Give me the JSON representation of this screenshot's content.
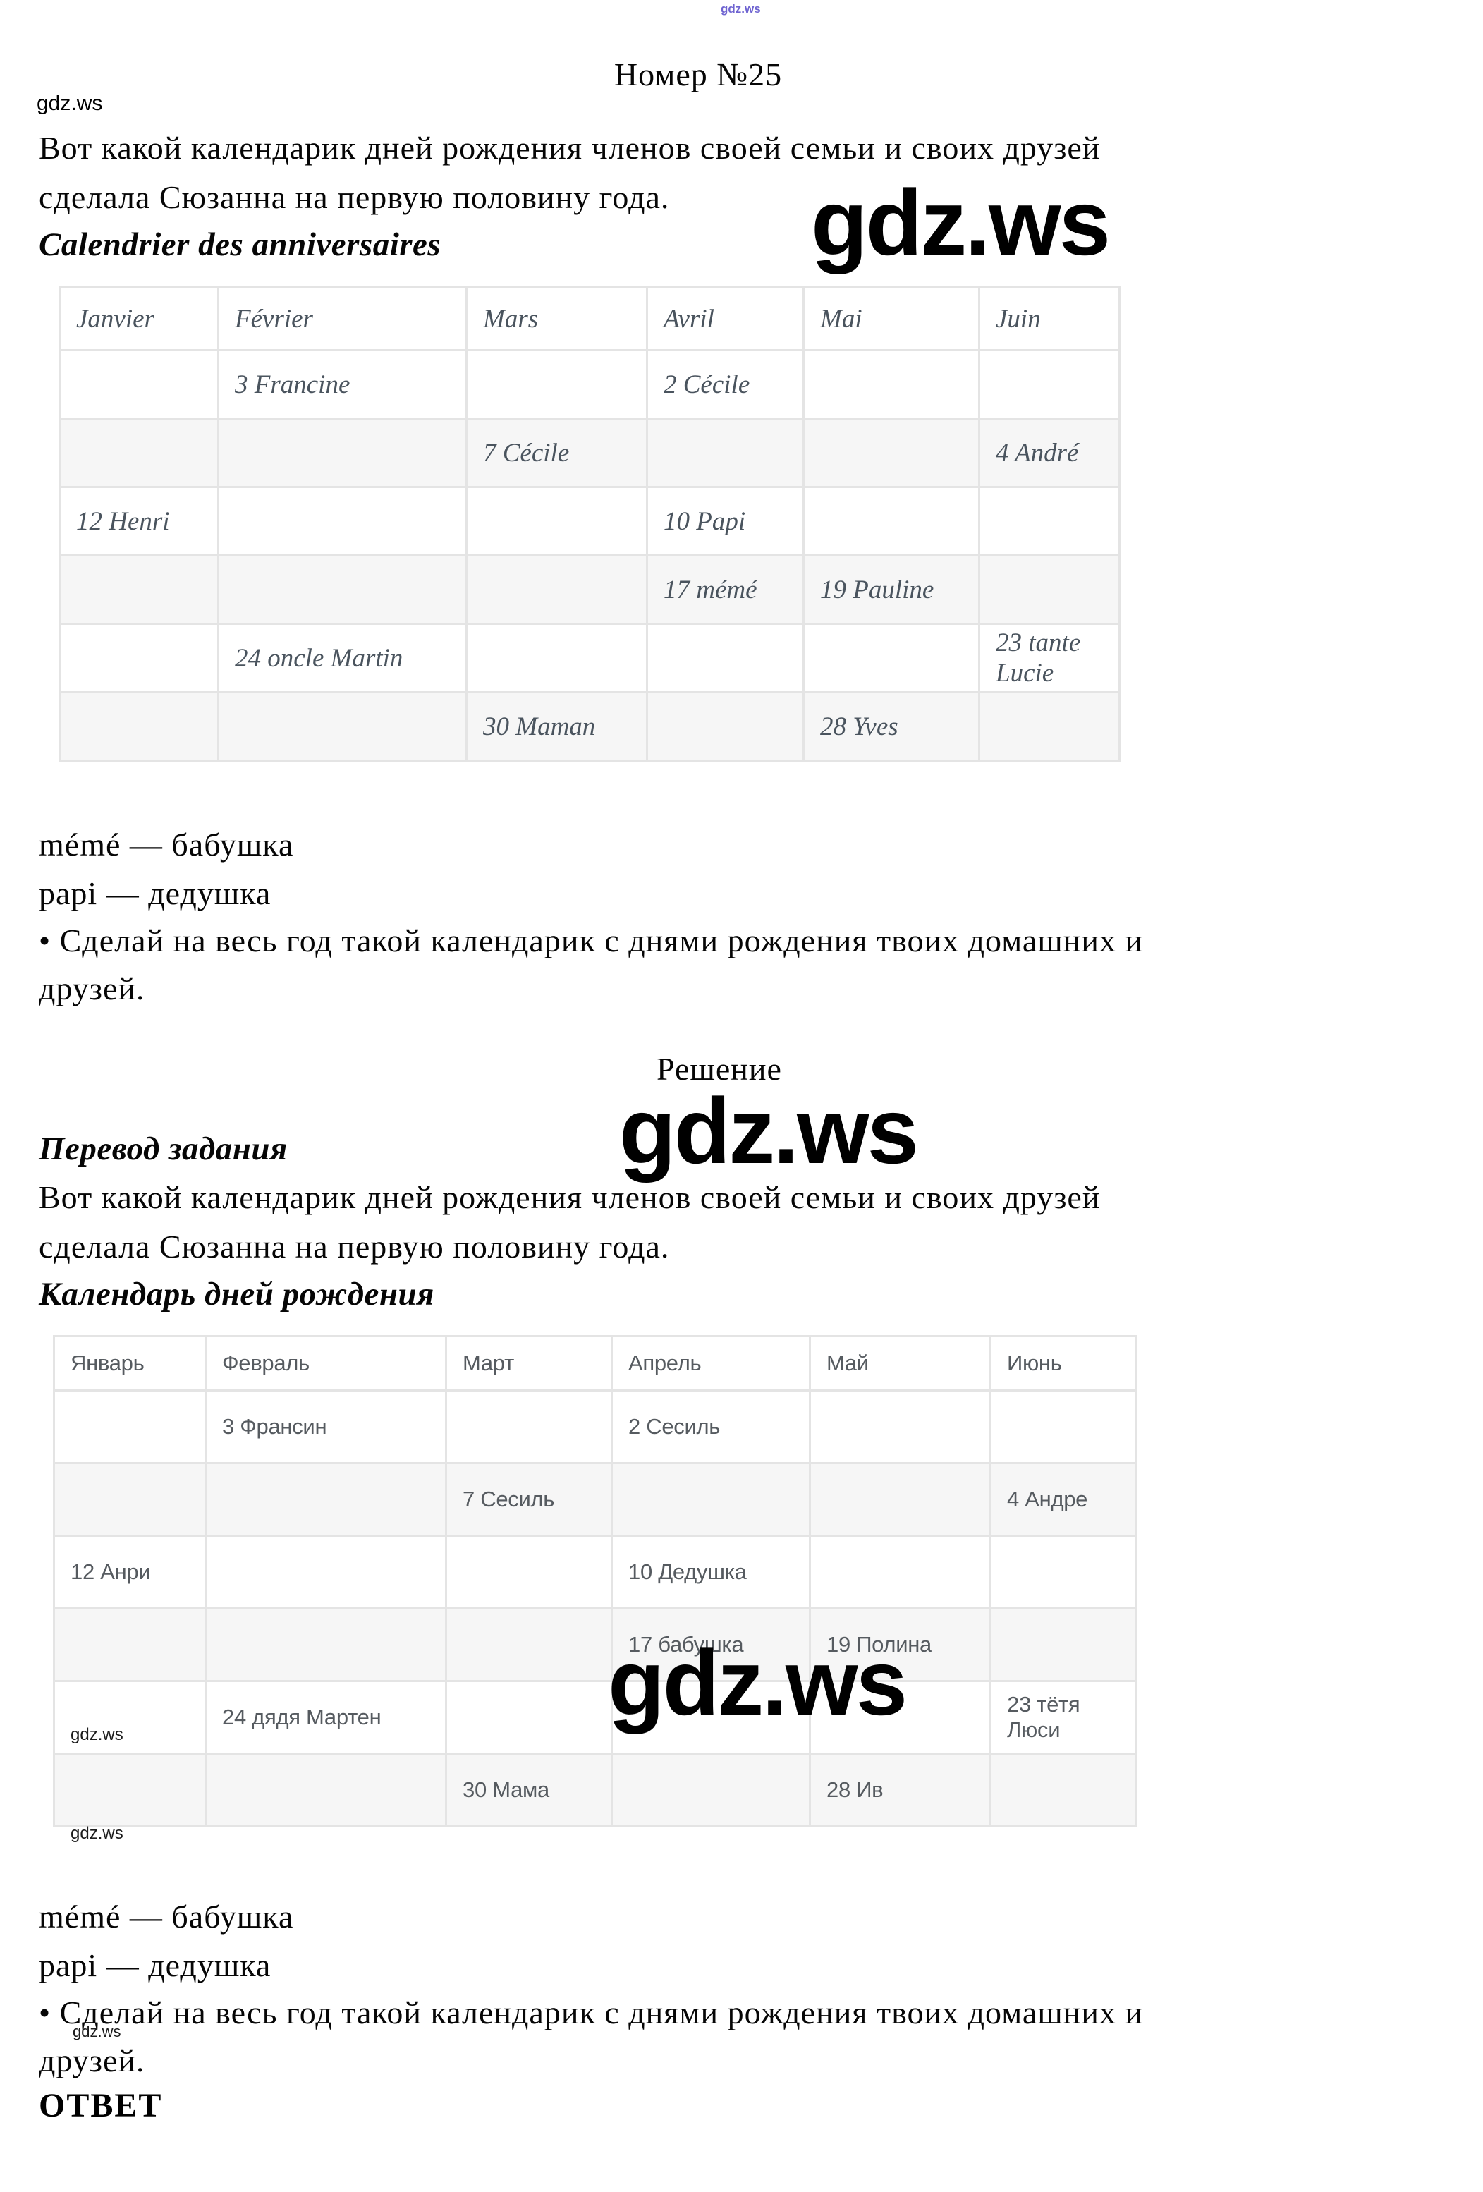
{
  "watermark": {
    "label": "gdz.ws"
  },
  "header": {
    "title": "Номер №25"
  },
  "task": {
    "line1": "Вот какой календарик дней рождения членов своей семьи и своих друзей",
    "line2": "сделала Сюзанна на первую половину года.",
    "calendar_title_fr": "Calendrier des anniversaires"
  },
  "glossary": {
    "meme": "mémé — бабушка",
    "papi": "papi — дедушка"
  },
  "instruction": {
    "line1": "• Сделай на весь год такой календарик с днями рождения твоих домашних и",
    "line2": "друзей."
  },
  "solution": {
    "heading": "Решение",
    "translation_title": "Перевод задания",
    "line1": "Вот какой календарик дней рождения членов своей семьи и своих друзей",
    "line2": "сделала Сюзанна на первую половину года.",
    "calendar_title_ru": "Календарь дней рождения",
    "answer_title": "ОТВЕТ"
  },
  "table_fr": {
    "headers": [
      "Janvier",
      "Février",
      "Mars",
      "Avril",
      "Mai",
      "Juin"
    ],
    "rows": [
      [
        "",
        "3 Francine",
        "",
        "2 Cécile",
        "",
        ""
      ],
      [
        "",
        "",
        "7 Cécile",
        "",
        "",
        "4 André"
      ],
      [
        "12 Henri",
        "",
        "",
        "10 Papi",
        "",
        ""
      ],
      [
        "",
        "",
        "",
        "17 mémé",
        "19 Pauline",
        ""
      ],
      [
        "",
        "24 oncle Martin",
        "",
        "",
        "",
        "23 tante Lucie"
      ],
      [
        "",
        "",
        "30 Maman",
        "",
        "28 Yves",
        ""
      ]
    ]
  },
  "table_ru": {
    "headers": [
      "Январь",
      "Февраль",
      "Март",
      "Апрель",
      "Май",
      "Июнь"
    ],
    "rows": [
      [
        "",
        "3 Франсин",
        "",
        "2 Сесиль",
        "",
        ""
      ],
      [
        "",
        "",
        "7 Сесиль",
        "",
        "",
        "4 Андре"
      ],
      [
        "12 Анри",
        "",
        "",
        "10 Дедушка",
        "",
        ""
      ],
      [
        "",
        "",
        "",
        "17 бабушка",
        "19 Полина",
        ""
      ],
      [
        "",
        "24 дядя Мартен",
        "",
        "",
        "",
        "23 тётя Люси"
      ],
      [
        "",
        "",
        "30 Мама",
        "",
        "28 Ив",
        ""
      ]
    ]
  }
}
